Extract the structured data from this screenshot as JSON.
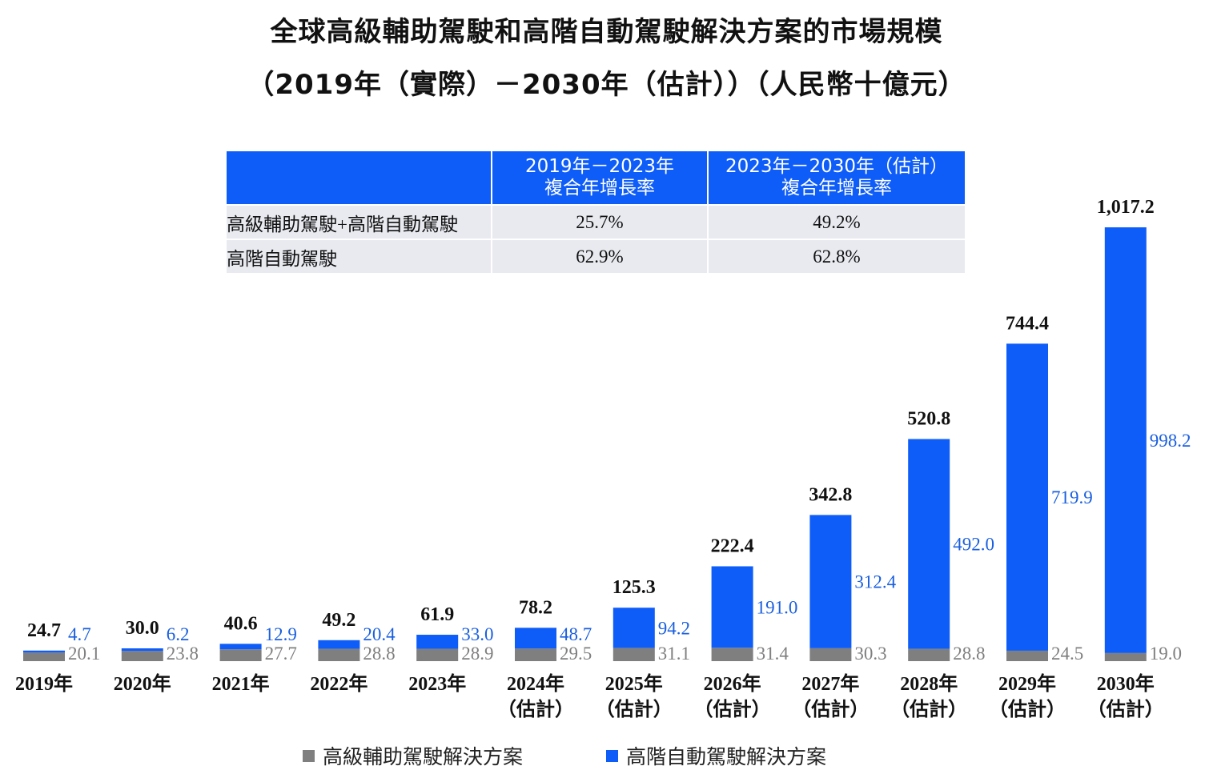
{
  "title_line1": "全球高級輔助駕駛和高階自動駕駛解決方案的市場規模",
  "title_line2": "（2019年（實際）－2030年（估計））（人民幣十億元）",
  "table": {
    "headers": [
      "",
      "2019年－2023年\n複合年增長率",
      "2023年－2030年（估計）\n複合年增長率"
    ],
    "header1": [
      "2019年－2023年",
      "複合年增長率"
    ],
    "header2": [
      "2023年－2030年（估計）",
      "複合年增長率"
    ],
    "rows": [
      {
        "label": "高級輔助駕駛+高階自動駕駛",
        "cagr1": "25.7%",
        "cagr2": "49.2%"
      },
      {
        "label": "高階自動駕駛",
        "cagr1": "62.9%",
        "cagr2": "62.8%"
      }
    ]
  },
  "colors": {
    "adas": "#7f7f7f",
    "ad": "#0f5df8",
    "ad_label": "#1a5fe0",
    "adas_label": "#7f7f7f"
  },
  "legend": {
    "adas": "高級輔助駕駛解決方案",
    "ad": "高階自動駕駛解決方案"
  },
  "chart_data": {
    "type": "bar",
    "stacked": true,
    "categories": [
      "2019年",
      "2020年",
      "2021年",
      "2022年",
      "2023年",
      "2024年\n（估計）",
      "2025年\n（估計）",
      "2026年\n（估計）",
      "2027年\n（估計）",
      "2028年\n（估計）",
      "2029年\n（估計）",
      "2030年\n（估計）"
    ],
    "category_lines": [
      [
        "2019年"
      ],
      [
        "2020年"
      ],
      [
        "2021年"
      ],
      [
        "2022年"
      ],
      [
        "2023年"
      ],
      [
        "2024年",
        "（估計）"
      ],
      [
        "2025年",
        "（估計）"
      ],
      [
        "2026年",
        "（估計）"
      ],
      [
        "2027年",
        "（估計）"
      ],
      [
        "2028年",
        "（估計）"
      ],
      [
        "2029年",
        "（估計）"
      ],
      [
        "2030年",
        "（估計）"
      ]
    ],
    "series": [
      {
        "name": "高級輔助駕駛解決方案",
        "values": [
          20.1,
          23.8,
          27.7,
          28.8,
          28.9,
          29.5,
          31.1,
          31.4,
          30.3,
          28.8,
          24.5,
          19.0
        ]
      },
      {
        "name": "高階自動駕駛解決方案",
        "values": [
          4.7,
          6.2,
          12.9,
          20.4,
          33.0,
          48.7,
          94.2,
          191.0,
          312.4,
          492.0,
          719.9,
          998.2
        ]
      }
    ],
    "series_labels": [
      [
        "20.1",
        "23.8",
        "27.7",
        "28.8",
        "28.9",
        "29.5",
        "31.1",
        "31.4",
        "30.3",
        "28.8",
        "24.5",
        "19.0"
      ],
      [
        "4.7",
        "6.2",
        "12.9",
        "20.4",
        "33.0",
        "48.7",
        "94.2",
        "191.0",
        "312.4",
        "492.0",
        "719.9",
        "998.2"
      ]
    ],
    "totals": [
      "24.7",
      "30.0",
      "40.6",
      "49.2",
      "61.9",
      "78.2",
      "125.3",
      "222.4",
      "342.8",
      "520.8",
      "744.4",
      "1,017.2"
    ],
    "ylim": [
      0,
      1017.2
    ],
    "xlabel": "",
    "ylabel": "",
    "grid": false,
    "legend": "bottom"
  }
}
